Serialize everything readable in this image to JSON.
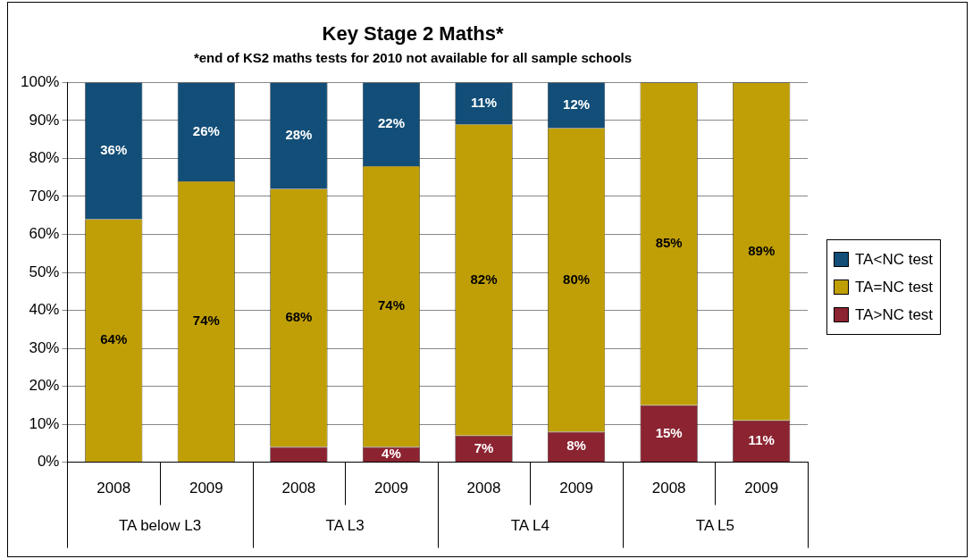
{
  "chart_data": {
    "type": "bar",
    "title": "Key Stage 2 Maths*",
    "subtitle": "*end of KS2 maths tests for 2010 not available for all sample schools",
    "categories": [
      "2008",
      "2009",
      "2008",
      "2009",
      "2008",
      "2009",
      "2008",
      "2009"
    ],
    "annotations": [
      "TA below L3",
      "TA L3",
      "TA L4",
      "TA L5"
    ],
    "stacked": true,
    "series": [
      {
        "name": "TA>NC test",
        "color": "#8b2331",
        "values": [
          0,
          0,
          4,
          4,
          7,
          8,
          15,
          11
        ],
        "value_labels": [
          null,
          null,
          null,
          "4%",
          "7%",
          "8%",
          "15%",
          "11%"
        ]
      },
      {
        "name": "TA=NC test",
        "color": "#c09f06",
        "values": [
          64,
          74,
          68,
          74,
          82,
          80,
          85,
          89
        ],
        "value_labels": [
          "64%",
          "74%",
          "68%",
          "74%",
          "82%",
          "80%",
          "85%",
          "89%"
        ]
      },
      {
        "name": "TA<NC test",
        "color": "#124e78",
        "values": [
          36,
          26,
          28,
          22,
          11,
          12,
          0,
          0
        ],
        "value_labels": [
          "36%",
          "26%",
          "28%",
          "22%",
          "11%",
          "12%",
          null,
          null
        ]
      }
    ],
    "ylim": [
      0,
      100
    ],
    "yticks": [
      {
        "value": 0,
        "label": "0%"
      },
      {
        "value": 10,
        "label": "10%"
      },
      {
        "value": 20,
        "label": "20%"
      },
      {
        "value": 30,
        "label": "30%"
      },
      {
        "value": 40,
        "label": "40%"
      },
      {
        "value": 50,
        "label": "50%"
      },
      {
        "value": 60,
        "label": "60%"
      },
      {
        "value": 70,
        "label": "70%"
      },
      {
        "value": 80,
        "label": "80%"
      },
      {
        "value": 90,
        "label": "90%"
      },
      {
        "value": 100,
        "label": "100%"
      }
    ],
    "grid": "y",
    "legend": "right"
  }
}
